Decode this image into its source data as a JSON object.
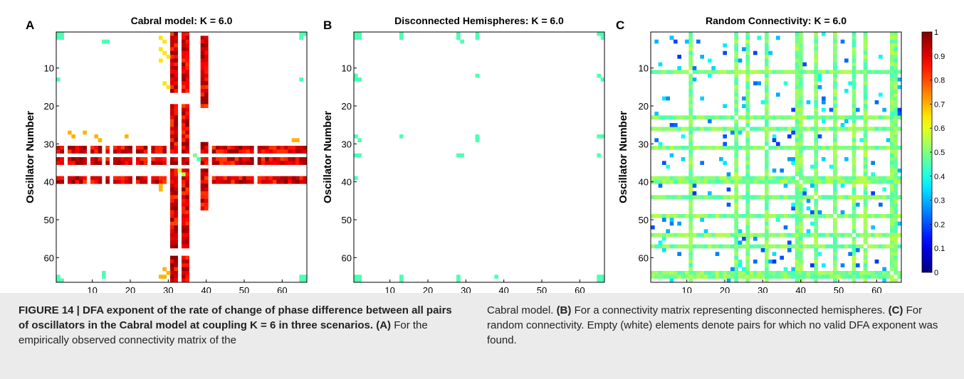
{
  "chart_data": [
    {
      "type": "heatmap",
      "panel_letter": "A",
      "title": "Cabral model: K = 6.0",
      "xlabel": "Oscillator Number",
      "ylabel": "Oscillator Number",
      "xlim": [
        0.5,
        66.5
      ],
      "ylim": [
        0.5,
        66.5
      ],
      "x_ticks": [
        10,
        20,
        30,
        40,
        50,
        60
      ],
      "y_ticks": [
        10,
        20,
        30,
        40,
        50,
        60
      ],
      "y_reversed": true,
      "color_range": [
        0,
        1
      ],
      "cells": [
        [
          1,
          1,
          0.45
        ],
        [
          2,
          2,
          0.45
        ],
        [
          1,
          2,
          0.45
        ],
        [
          2,
          1,
          0.45
        ],
        [
          65,
          1,
          0.45
        ],
        [
          66,
          1,
          0.45
        ],
        [
          65,
          2,
          0.45
        ],
        [
          1,
          65,
          0.45
        ],
        [
          2,
          66,
          0.45
        ],
        [
          1,
          66,
          0.45
        ],
        [
          65,
          65,
          0.45
        ],
        [
          66,
          66,
          0.45
        ],
        [
          65,
          66,
          0.45
        ],
        [
          66,
          65,
          0.45
        ],
        [
          13,
          3,
          0.45
        ],
        [
          14,
          3,
          0.45
        ],
        [
          13,
          64,
          0.45
        ],
        [
          13,
          65,
          0.45
        ],
        [
          1,
          13,
          0.45
        ],
        [
          65,
          13,
          0.45
        ],
        [
          28,
          2,
          0.65
        ],
        [
          29,
          3,
          0.65
        ],
        [
          28,
          5,
          0.65
        ],
        [
          29,
          6,
          0.65
        ],
        [
          30,
          7,
          0.65
        ],
        [
          28,
          8,
          0.65
        ],
        [
          29,
          14,
          0.65
        ],
        [
          30,
          15,
          0.65
        ],
        [
          37,
          33,
          0.5
        ],
        [
          38,
          34,
          0.45
        ],
        [
          33,
          37,
          0.6
        ],
        [
          34,
          38,
          0.55
        ],
        [
          4,
          27,
          0.7
        ],
        [
          5,
          28,
          0.7
        ],
        [
          8,
          27,
          0.7
        ],
        [
          11,
          28,
          0.7
        ],
        [
          12,
          29,
          0.7
        ],
        [
          63,
          29,
          0.7
        ],
        [
          64,
          29,
          0.7
        ],
        [
          19,
          28,
          0.7
        ],
        [
          28,
          41,
          0.7
        ],
        [
          28,
          42,
          0.7
        ],
        [
          29,
          63,
          0.7
        ],
        [
          30,
          64,
          0.7
        ],
        [
          28,
          65,
          0.7
        ],
        [
          29,
          65,
          0.7
        ]
      ],
      "high_bands": [
        [
          31,
          35
        ]
      ],
      "high_band_extra": [
        [
          39,
          40
        ]
      ],
      "blank_lines": [
        33,
        36
      ],
      "high_value": 0.9
    },
    {
      "type": "heatmap",
      "panel_letter": "B",
      "title": "Disconnected Hemispheres: K = 6.0",
      "xlabel": "Oscillator Number",
      "ylabel": "Oscillator Number",
      "xlim": [
        0.5,
        66.5
      ],
      "ylim": [
        0.5,
        66.5
      ],
      "x_ticks": [
        10,
        20,
        30,
        40,
        50,
        60
      ],
      "y_ticks": [
        10,
        20,
        30,
        40,
        50,
        60
      ],
      "y_reversed": true,
      "color_range": [
        0,
        1
      ],
      "cells": [
        [
          1,
          1,
          0.45
        ],
        [
          2,
          2,
          0.45
        ],
        [
          1,
          2,
          0.45
        ],
        [
          2,
          1,
          0.45
        ],
        [
          13,
          1,
          0.45
        ],
        [
          13,
          2,
          0.45
        ],
        [
          28,
          1,
          0.45
        ],
        [
          28,
          2,
          0.45
        ],
        [
          29,
          3,
          0.45
        ],
        [
          33,
          1,
          0.45
        ],
        [
          33,
          2,
          0.45
        ],
        [
          65,
          1,
          0.45
        ],
        [
          66,
          1,
          0.45
        ],
        [
          66,
          2,
          0.45
        ],
        [
          1,
          12,
          0.45
        ],
        [
          2,
          13,
          0.45
        ],
        [
          1,
          13,
          0.45
        ],
        [
          65,
          12,
          0.45
        ],
        [
          66,
          13,
          0.45
        ],
        [
          33,
          12,
          0.45
        ],
        [
          1,
          28,
          0.45
        ],
        [
          2,
          29,
          0.45
        ],
        [
          13,
          28,
          0.45
        ],
        [
          33,
          28,
          0.45
        ],
        [
          33,
          29,
          0.45
        ],
        [
          65,
          28,
          0.45
        ],
        [
          66,
          28,
          0.45
        ],
        [
          1,
          33,
          0.45
        ],
        [
          2,
          33,
          0.45
        ],
        [
          28,
          33,
          0.45
        ],
        [
          29,
          33,
          0.45
        ],
        [
          65,
          33,
          0.45
        ],
        [
          1,
          39,
          0.45
        ],
        [
          1,
          65,
          0.45
        ],
        [
          2,
          65,
          0.45
        ],
        [
          1,
          66,
          0.45
        ],
        [
          2,
          66,
          0.45
        ],
        [
          13,
          65,
          0.45
        ],
        [
          13,
          66,
          0.45
        ],
        [
          28,
          65,
          0.45
        ],
        [
          28,
          66,
          0.45
        ],
        [
          38,
          65,
          0.45
        ],
        [
          65,
          65,
          0.45
        ],
        [
          66,
          66,
          0.45
        ],
        [
          65,
          66,
          0.45
        ],
        [
          66,
          65,
          0.45
        ]
      ],
      "high_bands": [],
      "high_band_extra": [],
      "blank_lines": [],
      "high_value": 0.9
    },
    {
      "type": "heatmap",
      "panel_letter": "C",
      "title": "Random Connectivity: K = 6.0",
      "xlabel": "Oscillator Number",
      "ylabel": "Oscillator Number",
      "xlim": [
        0.5,
        66.5
      ],
      "ylim": [
        0.5,
        66.5
      ],
      "x_ticks": [
        10,
        20,
        30,
        40,
        50,
        60
      ],
      "y_ticks": [
        10,
        20,
        30,
        40,
        50,
        60
      ],
      "y_reversed": true,
      "color_range": [
        0,
        1
      ],
      "band_lines": [
        11,
        23,
        26,
        31,
        39,
        40,
        44,
        49,
        54,
        57,
        64,
        65
      ],
      "band_value": 0.5,
      "scatter_value": 0.3,
      "scatter_count": 260,
      "colorbar_ticks": [
        0,
        0.1,
        0.2,
        0.3,
        0.4,
        0.5,
        0.6,
        0.7,
        0.8,
        0.9,
        1
      ]
    }
  ],
  "caption": {
    "left_bold": "FIGURE 14 | DFA exponent of the rate of change of phase difference between all pairs of oscillators in the Cabral model at coupling K = 6 in three scenarios.",
    "left_label": "(A)",
    "left_rest": "For the empirically observed connectivity matrix of the",
    "right_a": "Cabral model.",
    "right_label_b": "(B)",
    "right_b": "For a connectivity matrix representing disconnected hemispheres.",
    "right_label_c": "(C)",
    "right_c": "For random connectivity. Empty (white) elements denote pairs for which no valid DFA exponent was found."
  },
  "colors": {
    "jet_dark_blue": "#00008f",
    "jet_dark_red": "#800000",
    "caption_background": "#ebebeb"
  }
}
